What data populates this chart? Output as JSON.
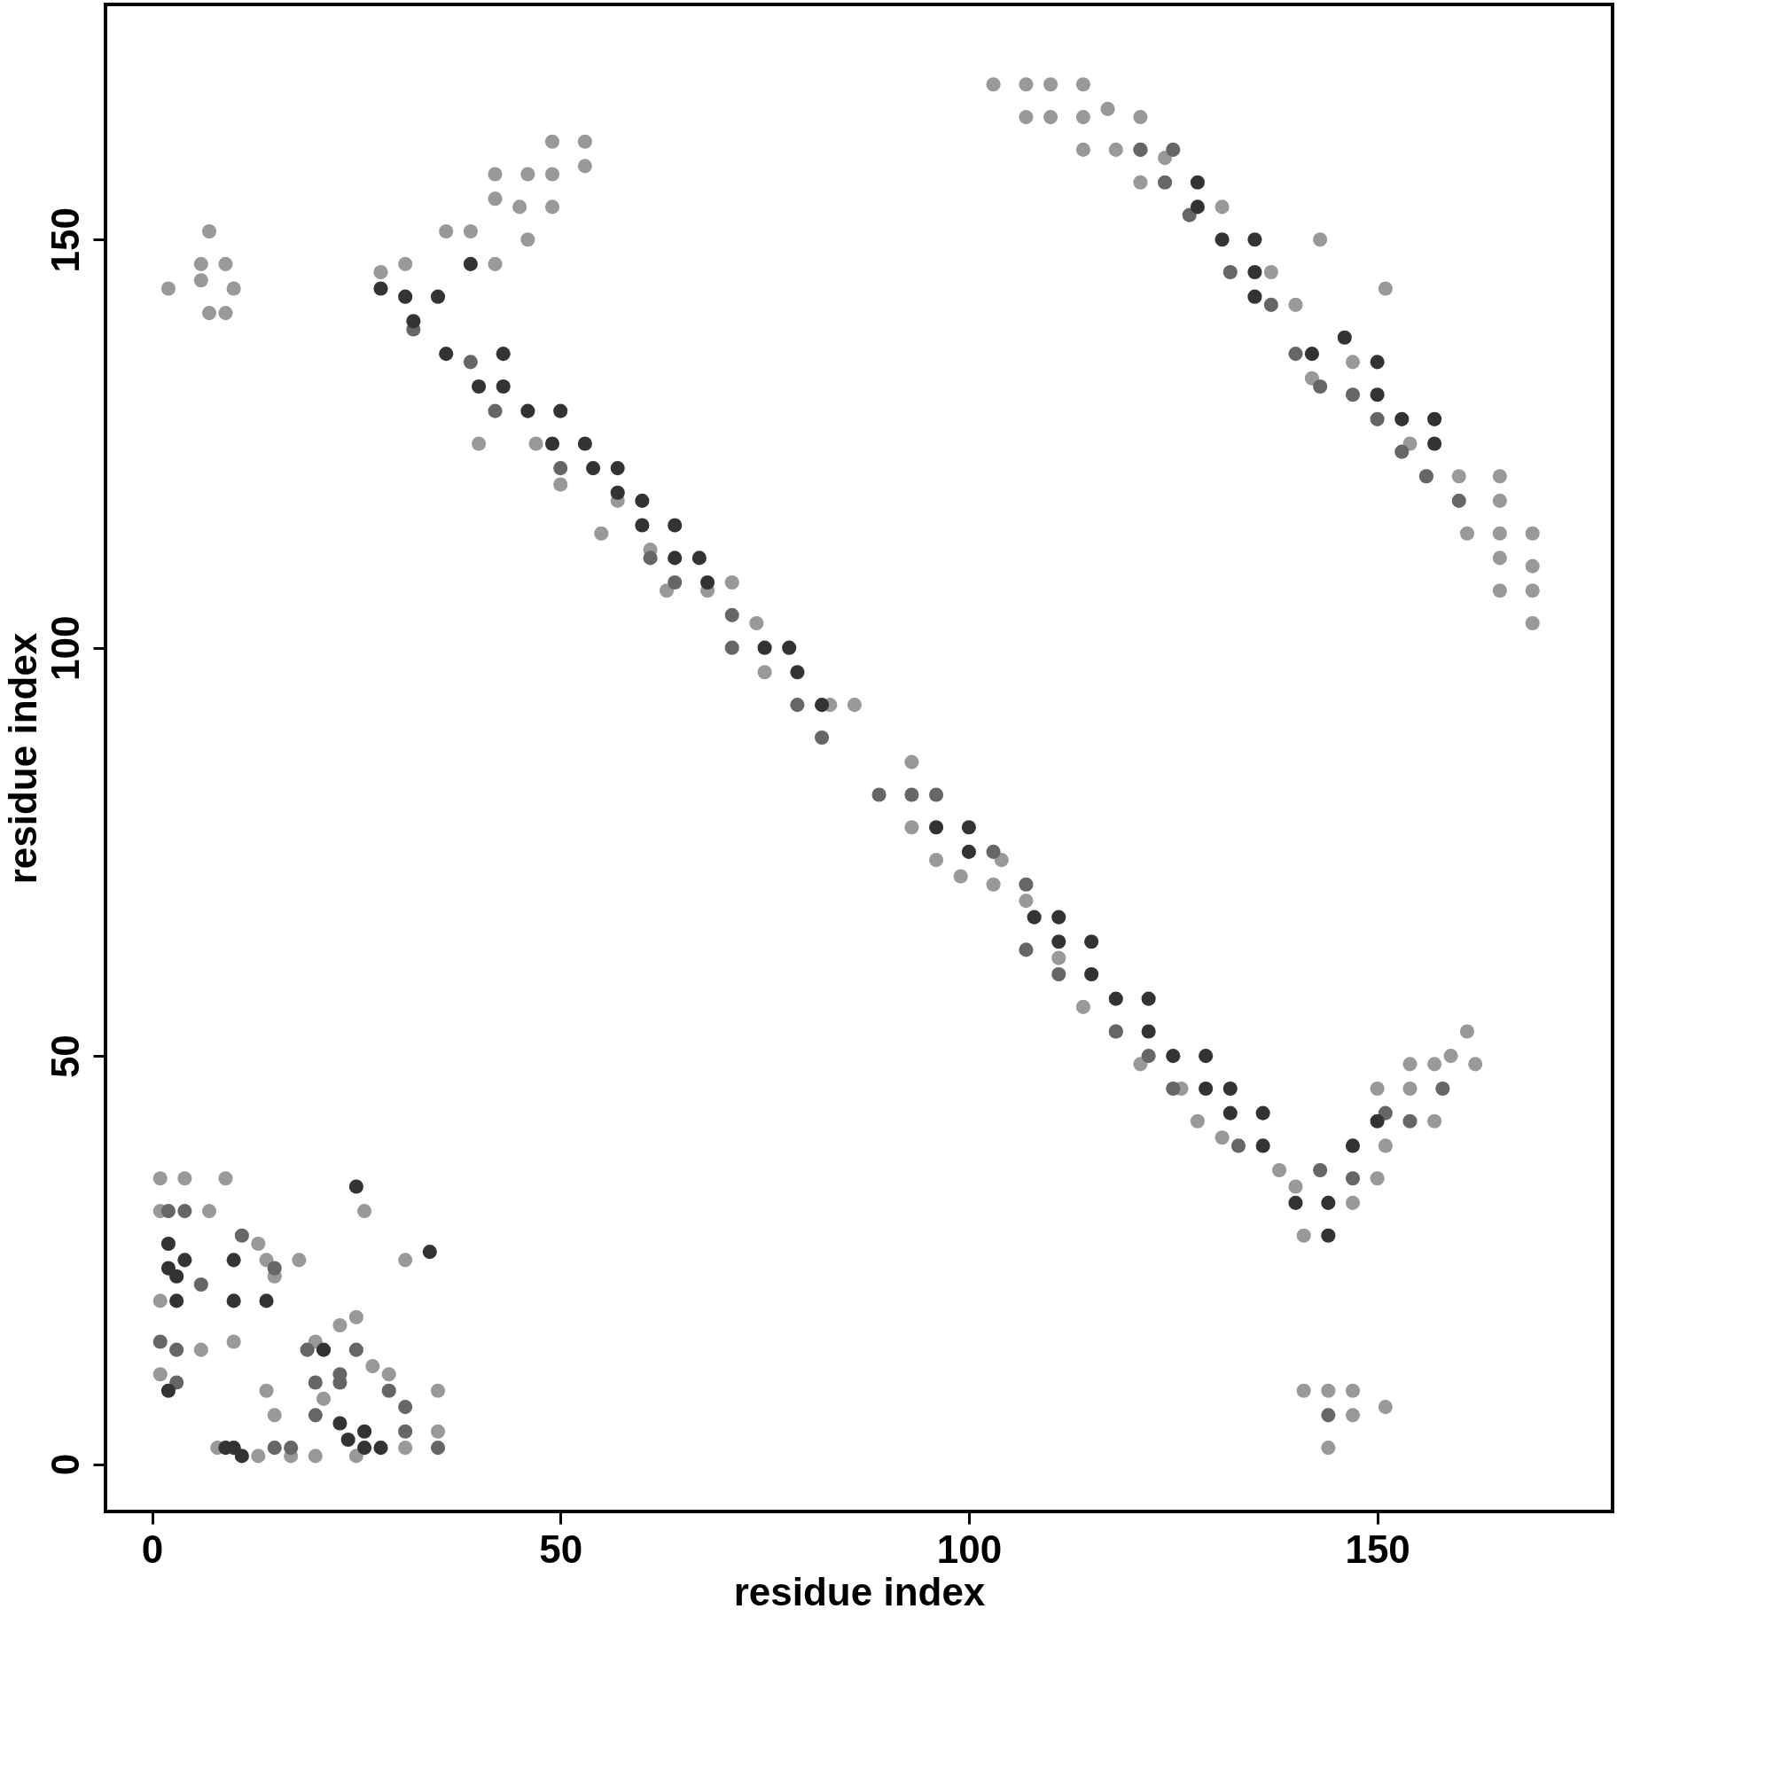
{
  "chart_data": {
    "type": "scatter",
    "xlabel": "residue index",
    "ylabel": "residue index",
    "xlim": [
      -5.7,
      178.8
    ],
    "ylim": [
      -5.8,
      178.8
    ],
    "xticks": [
      0,
      50,
      100,
      150
    ],
    "yticks": [
      0,
      50,
      100,
      150
    ],
    "grid": false,
    "legend": false,
    "marker": "circle",
    "series": [
      {
        "color": "#999999",
        "x": [
          28,
          31,
          36,
          39,
          42,
          42,
          46,
          45,
          46,
          49,
          49,
          49,
          53,
          53,
          42,
          7,
          2,
          6,
          6,
          9,
          9,
          10,
          7,
          40,
          47,
          50,
          57,
          55,
          61,
          63,
          68,
          71,
          74,
          75,
          83,
          86,
          93,
          93,
          96,
          99,
          103,
          104,
          107,
          111,
          114,
          118,
          121,
          126,
          128,
          131,
          138,
          140,
          141,
          147,
          150,
          151,
          150,
          154,
          154,
          157,
          157,
          159,
          161,
          162,
          103,
          107,
          107,
          110,
          110,
          114,
          114,
          114,
          117,
          118,
          121,
          121,
          121,
          124,
          131,
          137,
          140,
          143,
          151,
          142,
          147,
          154,
          156,
          160,
          161,
          165,
          165,
          165,
          165,
          169,
          169,
          169,
          169,
          165,
          144,
          144,
          141,
          147,
          147,
          151,
          1,
          4,
          1,
          1,
          1,
          6,
          7,
          9,
          10,
          13,
          14,
          15,
          18,
          26,
          31,
          8,
          13,
          17,
          15,
          20,
          23,
          25,
          27,
          29,
          21,
          35,
          35,
          31,
          25,
          20,
          14
        ],
        "values": [
          146,
          147,
          151,
          151,
          155,
          158,
          158,
          154,
          150,
          158,
          162,
          154,
          162,
          159,
          147,
          151,
          144,
          147,
          145,
          147,
          141,
          144,
          141,
          125,
          125,
          120,
          118,
          114,
          112,
          107,
          107,
          108,
          103,
          97,
          93,
          93,
          86,
          78,
          74,
          72,
          71,
          74,
          69,
          62,
          56,
          53,
          49,
          46,
          42,
          40,
          36,
          34,
          28,
          32,
          35,
          39,
          46,
          46,
          49,
          49,
          42,
          50,
          53,
          49,
          169,
          169,
          165,
          169,
          165,
          169,
          165,
          161,
          166,
          161,
          165,
          161,
          157,
          160,
          154,
          146,
          142,
          150,
          144,
          133,
          135,
          125,
          121,
          121,
          114,
          121,
          118,
          114,
          111,
          114,
          110,
          107,
          103,
          107,
          9,
          2,
          9,
          9,
          6,
          7,
          35,
          35,
          31,
          20,
          11,
          14,
          31,
          35,
          15,
          27,
          25,
          23,
          25,
          31,
          25,
          2,
          1,
          1,
          6,
          15,
          17,
          18,
          12,
          11,
          8,
          4,
          9,
          2,
          1,
          1,
          9
        ]
      },
      {
        "color": "#666666",
        "x": [
          32,
          39,
          42,
          50,
          61,
          64,
          71,
          71,
          79,
          82,
          89,
          93,
          96,
          103,
          107,
          107,
          111,
          118,
          122,
          125,
          133,
          143,
          147,
          151,
          154,
          158,
          125,
          124,
          121,
          127,
          132,
          137,
          140,
          143,
          147,
          150,
          153,
          156,
          160,
          2,
          4,
          1,
          3,
          3,
          6,
          11,
          15,
          15,
          20,
          23,
          25,
          19,
          20,
          29,
          31,
          31,
          35,
          23,
          17,
          144
        ],
        "values": [
          139,
          135,
          129,
          122,
          111,
          108,
          104,
          100,
          93,
          89,
          82,
          82,
          82,
          75,
          71,
          63,
          60,
          53,
          50,
          46,
          39,
          36,
          35,
          43,
          42,
          46,
          161,
          157,
          161,
          153,
          146,
          142,
          136,
          132,
          131,
          128,
          124,
          121,
          118,
          31,
          31,
          15,
          14,
          10,
          22,
          28,
          24,
          2,
          10,
          11,
          14,
          14,
          6,
          9,
          4,
          7,
          2,
          10,
          2,
          6
        ]
      },
      {
        "color": "#333333",
        "x": [
          28,
          31,
          35,
          32,
          39,
          36,
          40,
          43,
          43,
          46,
          50,
          49,
          53,
          54,
          57,
          57,
          60,
          60,
          64,
          64,
          67,
          68,
          75,
          78,
          79,
          82,
          96,
          100,
          100,
          108,
          111,
          111,
          115,
          115,
          118,
          122,
          122,
          125,
          129,
          129,
          132,
          132,
          136,
          136,
          140,
          144,
          144,
          147,
          150,
          128,
          128,
          131,
          135,
          135,
          135,
          142,
          146,
          150,
          150,
          153,
          157,
          157,
          2,
          4,
          3,
          2,
          3,
          2,
          10,
          10,
          14,
          21,
          23,
          24,
          26,
          26,
          28,
          10,
          11,
          9,
          34,
          25
        ],
        "values": [
          144,
          143,
          143,
          140,
          147,
          136,
          132,
          136,
          132,
          129,
          129,
          125,
          125,
          122,
          122,
          119,
          118,
          115,
          115,
          111,
          111,
          108,
          100,
          100,
          97,
          93,
          78,
          78,
          75,
          67,
          67,
          64,
          64,
          60,
          57,
          57,
          53,
          50,
          50,
          46,
          46,
          43,
          43,
          39,
          32,
          32,
          28,
          39,
          42,
          157,
          154,
          150,
          150,
          146,
          143,
          136,
          138,
          135,
          131,
          128,
          128,
          125,
          27,
          25,
          23,
          24,
          20,
          9,
          25,
          20,
          20,
          14,
          5,
          3,
          4,
          2,
          2,
          2,
          1,
          2,
          26,
          34
        ]
      }
    ]
  }
}
